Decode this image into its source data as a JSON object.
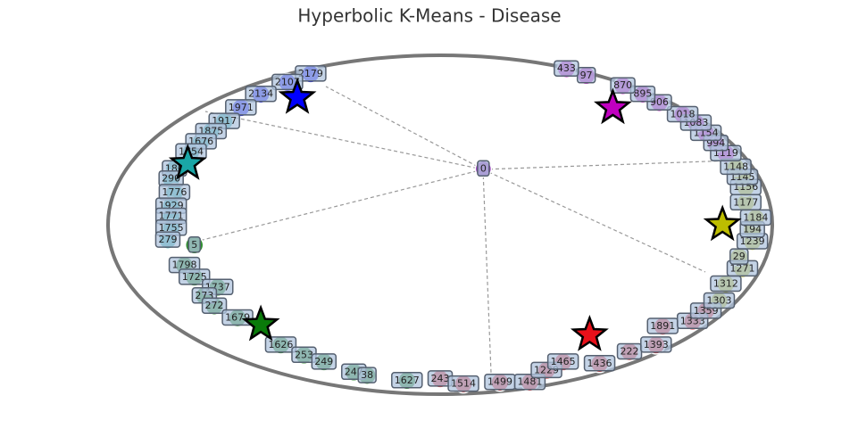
{
  "chart_data": {
    "type": "scatter",
    "title": "Hyperbolic K-Means - Disease",
    "xlim": [
      -1,
      1
    ],
    "ylim": [
      -1,
      1
    ],
    "center": {
      "label": "0",
      "x": 0.13,
      "y": 0.33,
      "color": "#9b30c0"
    },
    "series": [
      {
        "color": "#0000ff",
        "labels": [
          "2179",
          "2107",
          "2134",
          "1971"
        ],
        "x": [
          -0.39,
          -0.46,
          -0.54,
          -0.6
        ],
        "y": [
          0.89,
          0.84,
          0.77,
          0.69
        ],
        "centroid": [
          -0.43,
          0.75
        ]
      },
      {
        "color": "#1aa6a6",
        "labels": [
          "1917",
          "1875",
          "1676",
          "1754",
          "180",
          "290",
          "1776",
          "1929",
          "1771",
          "1755",
          "279"
        ],
        "x": [
          -0.65,
          -0.69,
          -0.72,
          -0.75,
          -0.8,
          -0.81,
          -0.8,
          -0.81,
          -0.81,
          -0.81,
          -0.82
        ],
        "y": [
          0.61,
          0.55,
          0.49,
          0.43,
          0.33,
          0.27,
          0.19,
          0.11,
          0.05,
          -0.02,
          -0.09
        ],
        "centroid": [
          -0.76,
          0.36
        ]
      },
      {
        "color": "#0a7a0a",
        "labels": [
          "5",
          "1798",
          "1725",
          "1737",
          "273",
          "272",
          "1679",
          "1626",
          "253",
          "249",
          "247",
          "38",
          "1627"
        ],
        "x": [
          -0.74,
          -0.77,
          -0.74,
          -0.67,
          -0.71,
          -0.68,
          -0.61,
          -0.48,
          -0.41,
          -0.35,
          -0.26,
          -0.22,
          -0.1
        ],
        "y": [
          -0.12,
          -0.24,
          -0.31,
          -0.37,
          -0.42,
          -0.48,
          -0.55,
          -0.71,
          -0.77,
          -0.81,
          -0.87,
          -0.89,
          -0.92
        ],
        "centroid": [
          -0.54,
          -0.59
        ]
      },
      {
        "color": "#e8101a",
        "labels": [
          "243",
          "1514",
          "1499",
          "1481",
          "1229",
          "1465",
          "1436",
          "222",
          "1393",
          "1891",
          "1333",
          "1359"
        ],
        "x": [
          0,
          0.07,
          0.18,
          0.27,
          0.32,
          0.37,
          0.48,
          0.57,
          0.65,
          0.67,
          0.76,
          0.8
        ],
        "y": [
          -0.91,
          -0.94,
          -0.93,
          -0.93,
          -0.86,
          -0.81,
          -0.82,
          -0.75,
          -0.71,
          -0.6,
          -0.57,
          -0.51
        ],
        "centroid": [
          0.45,
          -0.65
        ]
      },
      {
        "color": "#bdbd00",
        "labels": [
          "1303",
          "1312",
          "1271",
          "29",
          "1239",
          "194",
          "1184",
          "1177",
          "1156",
          "1145",
          "1148"
        ],
        "x": [
          0.84,
          0.86,
          0.91,
          0.9,
          0.94,
          0.94,
          0.95,
          0.92,
          0.92,
          0.91,
          0.89
        ],
        "y": [
          -0.45,
          -0.35,
          -0.26,
          -0.19,
          -0.1,
          -0.03,
          0.04,
          0.13,
          0.22,
          0.28,
          0.34
        ],
        "centroid": [
          0.85,
          0
        ]
      },
      {
        "color": "#c000c0",
        "labels": [
          "1119",
          "994",
          "1154",
          "1083",
          "1018",
          "906",
          "895",
          "870",
          "97",
          "433"
        ],
        "x": [
          0.86,
          0.83,
          0.8,
          0.77,
          0.73,
          0.66,
          0.61,
          0.55,
          0.44,
          0.38
        ],
        "y": [
          0.42,
          0.48,
          0.54,
          0.6,
          0.65,
          0.72,
          0.77,
          0.82,
          0.88,
          0.92
        ],
        "centroid": [
          0.52,
          0.69
        ]
      }
    ]
  }
}
